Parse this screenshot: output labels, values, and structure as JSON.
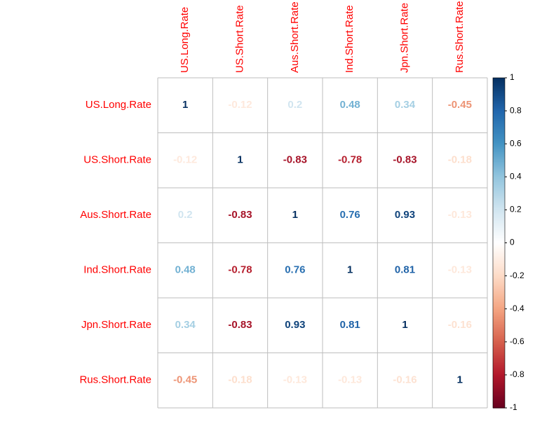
{
  "chart_data": {
    "type": "heatmap",
    "variables": [
      "US.Long.Rate",
      "US.Short.Rate",
      "Aus.Short.Rate",
      "Ind.Short.Rate",
      "Jpn.Short.Rate",
      "Rus.Short.Rate"
    ],
    "matrix": [
      [
        1,
        -0.12,
        0.2,
        0.48,
        0.34,
        -0.45
      ],
      [
        -0.12,
        1,
        -0.83,
        -0.78,
        -0.83,
        -0.18
      ],
      [
        0.2,
        -0.83,
        1,
        0.76,
        0.93,
        -0.13
      ],
      [
        0.48,
        -0.78,
        0.76,
        1,
        0.81,
        -0.13
      ],
      [
        0.34,
        -0.83,
        0.93,
        0.81,
        1,
        -0.16
      ],
      [
        -0.45,
        -0.18,
        -0.13,
        -0.13,
        -0.16,
        1
      ]
    ],
    "colorbar": {
      "range": [
        -1,
        1
      ],
      "ticks": [
        "1",
        "0.8",
        "0.6",
        "0.4",
        "0.2",
        "0",
        "-0.2",
        "-0.4",
        "-0.6",
        "-0.8",
        "-1"
      ]
    },
    "colors": {
      "label_color": "#ff0000",
      "grid_color": "#bebebe",
      "negative_end": "#67001f",
      "positive_end": "#053061"
    },
    "grid": true
  }
}
